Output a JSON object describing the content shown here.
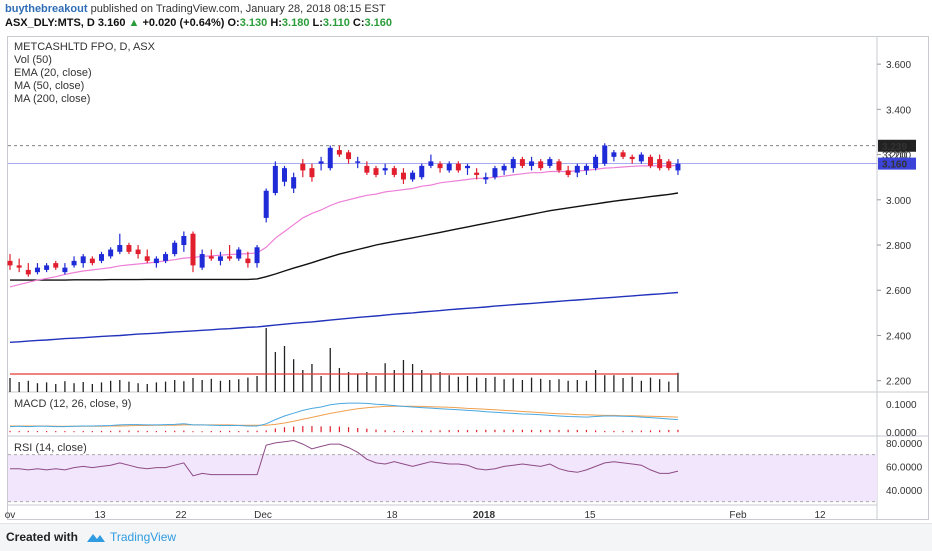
{
  "header": {
    "user": "buythebreakout",
    "published": "published on TradingView.com, January 28, 2018 08:15 EST",
    "symbol": "ASX_DLY:MTS, D",
    "price": "3.160",
    "change": "+0.020 (+0.64%)",
    "o_label": "O:",
    "o": "3.130",
    "h_label": "H:",
    "h": "3.180",
    "l_label": "L:",
    "l": "3.110",
    "c_label": "C:",
    "c": "3.160"
  },
  "legend": {
    "title": "METCASHLTD FPO, D, ASX",
    "vol": "Vol (50)",
    "ema": "EMA (20, close)",
    "ma50": "MA (50, close)",
    "ma200": "MA (200, close)",
    "macd": "MACD (12, 26, close, 9)",
    "rsi": "RSI (14, close)"
  },
  "footer": {
    "made": "Created with",
    "brand": "TradingView"
  },
  "colors": {
    "up": "#1f2bd6",
    "down": "#e01e2d",
    "ema": "#ee7fd8",
    "ma50": "#111111",
    "ma200": "#2233bb",
    "vol_ma": "#e53935",
    "macd": "#4aa8e0",
    "signal": "#f0a050",
    "rsi": "#8e4b86",
    "rsi_band": "#f1e6fb"
  },
  "chart_data": {
    "type": "candlestick",
    "x_tick_labels": [
      "ov",
      "13",
      "22",
      "Dec",
      "18",
      "2018",
      "15",
      "Feb",
      "12"
    ],
    "y_ticks": [
      "3.600",
      "3.400",
      "3.200",
      "3.000",
      "2.800",
      "2.600",
      "2.400",
      "2.200"
    ],
    "ylim": [
      2.15,
      3.72
    ],
    "last_price_label": "3.160",
    "high_line_label": "3.239",
    "hidden_label": "3.200",
    "candles": [
      {
        "o": 2.73,
        "h": 2.76,
        "l": 2.69,
        "c": 2.71
      },
      {
        "o": 2.71,
        "h": 2.74,
        "l": 2.68,
        "c": 2.7
      },
      {
        "o": 2.69,
        "h": 2.72,
        "l": 2.66,
        "c": 2.67
      },
      {
        "o": 2.68,
        "h": 2.72,
        "l": 2.67,
        "c": 2.7
      },
      {
        "o": 2.69,
        "h": 2.72,
        "l": 2.68,
        "c": 2.71
      },
      {
        "o": 2.72,
        "h": 2.73,
        "l": 2.69,
        "c": 2.7
      },
      {
        "o": 2.68,
        "h": 2.72,
        "l": 2.67,
        "c": 2.7
      },
      {
        "o": 2.71,
        "h": 2.75,
        "l": 2.7,
        "c": 2.73
      },
      {
        "o": 2.72,
        "h": 2.76,
        "l": 2.7,
        "c": 2.75
      },
      {
        "o": 2.74,
        "h": 2.75,
        "l": 2.71,
        "c": 2.72
      },
      {
        "o": 2.73,
        "h": 2.77,
        "l": 2.72,
        "c": 2.76
      },
      {
        "o": 2.75,
        "h": 2.79,
        "l": 2.74,
        "c": 2.78
      },
      {
        "o": 2.77,
        "h": 2.85,
        "l": 2.76,
        "c": 2.8
      },
      {
        "o": 2.8,
        "h": 2.81,
        "l": 2.76,
        "c": 2.77
      },
      {
        "o": 2.78,
        "h": 2.8,
        "l": 2.74,
        "c": 2.76
      },
      {
        "o": 2.75,
        "h": 2.78,
        "l": 2.72,
        "c": 2.73
      },
      {
        "o": 2.72,
        "h": 2.75,
        "l": 2.7,
        "c": 2.74
      },
      {
        "o": 2.73,
        "h": 2.77,
        "l": 2.72,
        "c": 2.76
      },
      {
        "o": 2.76,
        "h": 2.82,
        "l": 2.75,
        "c": 2.81
      },
      {
        "o": 2.8,
        "h": 2.86,
        "l": 2.77,
        "c": 2.84
      },
      {
        "o": 2.85,
        "h": 2.86,
        "l": 2.68,
        "c": 2.71
      },
      {
        "o": 2.7,
        "h": 2.78,
        "l": 2.69,
        "c": 2.76
      },
      {
        "o": 2.75,
        "h": 2.78,
        "l": 2.73,
        "c": 2.74
      },
      {
        "o": 2.73,
        "h": 2.77,
        "l": 2.71,
        "c": 2.75
      },
      {
        "o": 2.75,
        "h": 2.8,
        "l": 2.73,
        "c": 2.74
      },
      {
        "o": 2.74,
        "h": 2.79,
        "l": 2.73,
        "c": 2.78
      },
      {
        "o": 2.74,
        "h": 2.77,
        "l": 2.7,
        "c": 2.72
      },
      {
        "o": 2.72,
        "h": 2.8,
        "l": 2.7,
        "c": 2.79
      },
      {
        "o": 2.92,
        "h": 3.05,
        "l": 2.9,
        "c": 3.04
      },
      {
        "o": 3.03,
        "h": 3.17,
        "l": 3.02,
        "c": 3.15
      },
      {
        "o": 3.08,
        "h": 3.15,
        "l": 3.06,
        "c": 3.14
      },
      {
        "o": 3.05,
        "h": 3.12,
        "l": 3.03,
        "c": 3.1
      },
      {
        "o": 3.16,
        "h": 3.18,
        "l": 3.1,
        "c": 3.13
      },
      {
        "o": 3.14,
        "h": 3.16,
        "l": 3.08,
        "c": 3.1
      },
      {
        "o": 3.16,
        "h": 3.19,
        "l": 3.13,
        "c": 3.17
      },
      {
        "o": 3.14,
        "h": 3.24,
        "l": 3.13,
        "c": 3.23
      },
      {
        "o": 3.22,
        "h": 3.24,
        "l": 3.19,
        "c": 3.2
      },
      {
        "o": 3.21,
        "h": 3.22,
        "l": 3.16,
        "c": 3.18
      },
      {
        "o": 3.17,
        "h": 3.19,
        "l": 3.14,
        "c": 3.17
      },
      {
        "o": 3.15,
        "h": 3.17,
        "l": 3.11,
        "c": 3.12
      },
      {
        "o": 3.14,
        "h": 3.15,
        "l": 3.1,
        "c": 3.11
      },
      {
        "o": 3.13,
        "h": 3.16,
        "l": 3.11,
        "c": 3.14
      },
      {
        "o": 3.14,
        "h": 3.15,
        "l": 3.1,
        "c": 3.11
      },
      {
        "o": 3.12,
        "h": 3.14,
        "l": 3.07,
        "c": 3.09
      },
      {
        "o": 3.09,
        "h": 3.13,
        "l": 3.08,
        "c": 3.12
      },
      {
        "o": 3.1,
        "h": 3.16,
        "l": 3.09,
        "c": 3.15
      },
      {
        "o": 3.15,
        "h": 3.2,
        "l": 3.14,
        "c": 3.17
      },
      {
        "o": 3.16,
        "h": 3.17,
        "l": 3.12,
        "c": 3.14
      },
      {
        "o": 3.13,
        "h": 3.17,
        "l": 3.12,
        "c": 3.16
      },
      {
        "o": 3.16,
        "h": 3.17,
        "l": 3.12,
        "c": 3.13
      },
      {
        "o": 3.14,
        "h": 3.16,
        "l": 3.11,
        "c": 3.15
      },
      {
        "o": 3.12,
        "h": 3.14,
        "l": 3.09,
        "c": 3.11
      },
      {
        "o": 3.09,
        "h": 3.12,
        "l": 3.07,
        "c": 3.1
      },
      {
        "o": 3.1,
        "h": 3.15,
        "l": 3.09,
        "c": 3.14
      },
      {
        "o": 3.13,
        "h": 3.16,
        "l": 3.11,
        "c": 3.15
      },
      {
        "o": 3.14,
        "h": 3.19,
        "l": 3.12,
        "c": 3.18
      },
      {
        "o": 3.18,
        "h": 3.19,
        "l": 3.14,
        "c": 3.15
      },
      {
        "o": 3.15,
        "h": 3.19,
        "l": 3.13,
        "c": 3.17
      },
      {
        "o": 3.17,
        "h": 3.18,
        "l": 3.13,
        "c": 3.14
      },
      {
        "o": 3.15,
        "h": 3.19,
        "l": 3.14,
        "c": 3.18
      },
      {
        "o": 3.17,
        "h": 3.18,
        "l": 3.12,
        "c": 3.13
      },
      {
        "o": 3.13,
        "h": 3.15,
        "l": 3.1,
        "c": 3.11
      },
      {
        "o": 3.12,
        "h": 3.16,
        "l": 3.1,
        "c": 3.15
      },
      {
        "o": 3.13,
        "h": 3.16,
        "l": 3.11,
        "c": 3.15
      },
      {
        "o": 3.14,
        "h": 3.2,
        "l": 3.13,
        "c": 3.19
      },
      {
        "o": 3.16,
        "h": 3.25,
        "l": 3.15,
        "c": 3.24
      },
      {
        "o": 3.19,
        "h": 3.22,
        "l": 3.17,
        "c": 3.21
      },
      {
        "o": 3.21,
        "h": 3.22,
        "l": 3.18,
        "c": 3.19
      },
      {
        "o": 3.19,
        "h": 3.2,
        "l": 3.16,
        "c": 3.18
      },
      {
        "o": 3.17,
        "h": 3.21,
        "l": 3.16,
        "c": 3.2
      },
      {
        "o": 3.19,
        "h": 3.2,
        "l": 3.14,
        "c": 3.15
      },
      {
        "o": 3.18,
        "h": 3.2,
        "l": 3.13,
        "c": 3.14
      },
      {
        "o": 3.17,
        "h": 3.18,
        "l": 3.13,
        "c": 3.14
      },
      {
        "o": 3.13,
        "h": 3.18,
        "l": 3.11,
        "c": 3.16
      }
    ],
    "volume": [
      0.35,
      0.25,
      0.28,
      0.22,
      0.24,
      0.2,
      0.27,
      0.22,
      0.25,
      0.2,
      0.24,
      0.28,
      0.3,
      0.26,
      0.22,
      0.2,
      0.24,
      0.26,
      0.3,
      0.27,
      0.35,
      0.3,
      0.33,
      0.28,
      0.3,
      0.32,
      0.36,
      0.4,
      1.6,
      1.0,
      1.15,
      0.82,
      0.55,
      0.7,
      0.4,
      1.1,
      0.6,
      0.5,
      0.45,
      0.5,
      0.4,
      0.72,
      0.55,
      0.8,
      0.7,
      0.55,
      0.45,
      0.5,
      0.42,
      0.38,
      0.4,
      0.36,
      0.35,
      0.38,
      0.32,
      0.34,
      0.3,
      0.36,
      0.33,
      0.3,
      0.32,
      0.28,
      0.3,
      0.28,
      0.55,
      0.42,
      0.42,
      0.35,
      0.38,
      0.28,
      0.36,
      0.32,
      0.26,
      0.48
    ],
    "ema20": [
      2.615,
      2.625,
      2.635,
      2.645,
      2.652,
      2.66,
      2.67,
      2.678,
      2.685,
      2.69,
      2.695,
      2.7,
      2.708,
      2.712,
      2.716,
      2.72,
      2.725,
      2.73,
      2.735,
      2.742,
      2.745,
      2.75,
      2.752,
      2.755,
      2.758,
      2.76,
      2.762,
      2.765,
      2.79,
      2.83,
      2.86,
      2.89,
      2.92,
      2.94,
      2.955,
      2.975,
      2.99,
      3.0,
      3.01,
      3.02,
      3.025,
      3.035,
      3.04,
      3.045,
      3.05,
      3.06,
      3.065,
      3.075,
      3.08,
      3.085,
      3.09,
      3.095,
      3.095,
      3.1,
      3.105,
      3.11,
      3.115,
      3.12,
      3.12,
      3.125,
      3.125,
      3.125,
      3.128,
      3.13,
      3.135,
      3.14,
      3.142,
      3.145,
      3.148,
      3.15,
      3.15,
      3.15,
      3.15,
      3.152
    ],
    "ma50": [
      2.645,
      2.645,
      2.645,
      2.645,
      2.645,
      2.645,
      2.645,
      2.646,
      2.646,
      2.646,
      2.646,
      2.647,
      2.647,
      2.647,
      2.647,
      2.648,
      2.648,
      2.648,
      2.648,
      2.648,
      2.648,
      2.648,
      2.648,
      2.648,
      2.648,
      2.648,
      2.648,
      2.65,
      2.66,
      2.672,
      2.685,
      2.698,
      2.71,
      2.722,
      2.735,
      2.748,
      2.76,
      2.77,
      2.78,
      2.79,
      2.8,
      2.808,
      2.816,
      2.824,
      2.832,
      2.84,
      2.848,
      2.856,
      2.864,
      2.872,
      2.88,
      2.888,
      2.896,
      2.904,
      2.912,
      2.92,
      2.928,
      2.936,
      2.944,
      2.952,
      2.958,
      2.964,
      2.97,
      2.976,
      2.982,
      2.988,
      2.994,
      2.999,
      3.004,
      3.009,
      3.014,
      3.019,
      3.024,
      3.03
    ],
    "ma200": [
      2.37,
      2.372,
      2.375,
      2.378,
      2.38,
      2.383,
      2.386,
      2.388,
      2.39,
      2.393,
      2.396,
      2.398,
      2.4,
      2.403,
      2.406,
      2.408,
      2.41,
      2.413,
      2.416,
      2.418,
      2.42,
      2.423,
      2.425,
      2.428,
      2.43,
      2.433,
      2.436,
      2.438,
      2.442,
      2.446,
      2.45,
      2.454,
      2.457,
      2.46,
      2.464,
      2.468,
      2.472,
      2.476,
      2.48,
      2.483,
      2.486,
      2.49,
      2.494,
      2.497,
      2.5,
      2.504,
      2.507,
      2.51,
      2.514,
      2.517,
      2.52,
      2.523,
      2.526,
      2.53,
      2.533,
      2.536,
      2.539,
      2.542,
      2.545,
      2.548,
      2.551,
      2.554,
      2.557,
      2.56,
      2.563,
      2.566,
      2.569,
      2.572,
      2.575,
      2.578,
      2.581,
      2.584,
      2.587,
      2.59
    ],
    "macd_ticks": [
      "0.1000",
      "0.0000"
    ],
    "macd_ylim": [
      -0.01,
      0.14
    ],
    "macd": [
      0.02,
      0.021,
      0.02,
      0.021,
      0.021,
      0.02,
      0.02,
      0.021,
      0.022,
      0.022,
      0.023,
      0.024,
      0.026,
      0.027,
      0.027,
      0.026,
      0.026,
      0.027,
      0.028,
      0.03,
      0.026,
      0.026,
      0.025,
      0.024,
      0.024,
      0.024,
      0.022,
      0.022,
      0.03,
      0.045,
      0.058,
      0.068,
      0.078,
      0.085,
      0.09,
      0.098,
      0.102,
      0.104,
      0.104,
      0.103,
      0.1,
      0.098,
      0.095,
      0.092,
      0.09,
      0.088,
      0.086,
      0.084,
      0.082,
      0.08,
      0.078,
      0.076,
      0.073,
      0.071,
      0.069,
      0.067,
      0.065,
      0.064,
      0.062,
      0.06,
      0.058,
      0.056,
      0.055,
      0.054,
      0.056,
      0.058,
      0.058,
      0.057,
      0.056,
      0.054,
      0.052,
      0.05,
      0.047,
      0.045
    ],
    "signal": [
      0.022,
      0.022,
      0.022,
      0.022,
      0.022,
      0.021,
      0.021,
      0.021,
      0.021,
      0.021,
      0.021,
      0.022,
      0.022,
      0.023,
      0.024,
      0.024,
      0.025,
      0.025,
      0.025,
      0.026,
      0.026,
      0.026,
      0.026,
      0.026,
      0.026,
      0.025,
      0.025,
      0.025,
      0.025,
      0.028,
      0.033,
      0.039,
      0.046,
      0.053,
      0.06,
      0.067,
      0.073,
      0.079,
      0.084,
      0.087,
      0.09,
      0.092,
      0.093,
      0.093,
      0.093,
      0.092,
      0.091,
      0.09,
      0.089,
      0.087,
      0.085,
      0.084,
      0.082,
      0.08,
      0.078,
      0.076,
      0.074,
      0.072,
      0.07,
      0.068,
      0.066,
      0.065,
      0.063,
      0.062,
      0.061,
      0.06,
      0.06,
      0.059,
      0.059,
      0.058,
      0.057,
      0.056,
      0.055,
      0.054
    ],
    "rsi_ticks": [
      "80.0000",
      "60.0000",
      "40.0000"
    ],
    "rsi_ylim": [
      28,
      85
    ],
    "rsi_band": [
      30,
      70
    ],
    "rsi": [
      58,
      58,
      57,
      58,
      57,
      58,
      57,
      59,
      60,
      59,
      60,
      61,
      63,
      61,
      59,
      58,
      59,
      59,
      61,
      63,
      52,
      54,
      53,
      53,
      53,
      53,
      53,
      53,
      78,
      80,
      81,
      82,
      79,
      75,
      77,
      79,
      79,
      76,
      72,
      66,
      63,
      62,
      64,
      62,
      60,
      62,
      64,
      63,
      62,
      62,
      61,
      58,
      57,
      58,
      60,
      61,
      62,
      61,
      60,
      62,
      58,
      56,
      55,
      57,
      60,
      63,
      64,
      63,
      62,
      61,
      57,
      54,
      54,
      56
    ]
  }
}
